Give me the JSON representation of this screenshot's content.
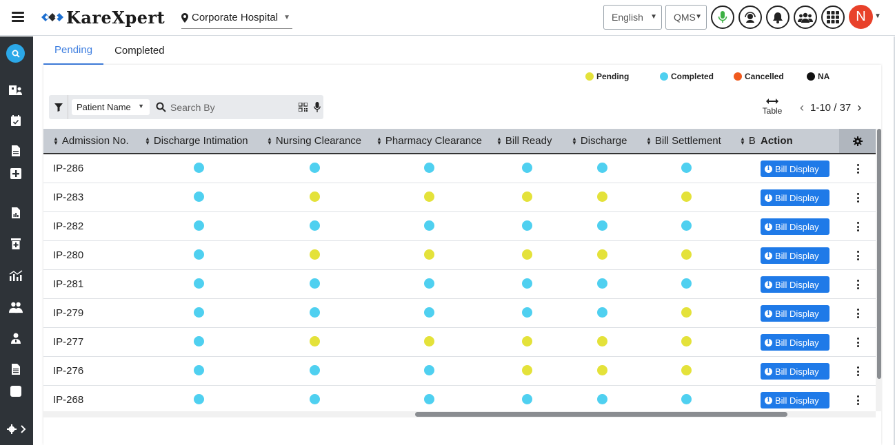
{
  "header": {
    "logo_text": "KareXpert",
    "location": "Corporate Hospital",
    "language": "English",
    "qms": "QMS",
    "avatar_initial": "N"
  },
  "tabs": [
    {
      "label": "Pending",
      "active": true
    },
    {
      "label": "Completed",
      "active": false
    }
  ],
  "legend": [
    {
      "label": "Pending",
      "color": "#e4e23a"
    },
    {
      "label": "Completed",
      "color": "#4fd0f0"
    },
    {
      "label": "Cancelled",
      "color": "#f05a1e"
    },
    {
      "label": "NA",
      "color": "#111111"
    }
  ],
  "filter": {
    "field": "Patient Name",
    "placeholder": "Search By"
  },
  "view_toggle": "Table",
  "pager": "1-10 / 37",
  "columns": [
    "Admission No.",
    "Discharge Intimation",
    "Nursing Clearance",
    "Pharmacy Clearance",
    "Bill Ready",
    "Discharge",
    "Bill Settlement",
    "B",
    "Action"
  ],
  "status_colors": {
    "P": "#e4e23a",
    "C": "#4fd0f0"
  },
  "rows": [
    {
      "adm": "IP-286",
      "status": [
        "C",
        "C",
        "C",
        "C",
        "C",
        "C"
      ],
      "action": "Bill Display"
    },
    {
      "adm": "IP-283",
      "status": [
        "C",
        "P",
        "P",
        "P",
        "P",
        "P"
      ],
      "action": "Bill Display"
    },
    {
      "adm": "IP-282",
      "status": [
        "C",
        "C",
        "C",
        "C",
        "C",
        "C"
      ],
      "action": "Bill Display"
    },
    {
      "adm": "IP-280",
      "status": [
        "C",
        "P",
        "P",
        "P",
        "P",
        "P"
      ],
      "action": "Bill Display"
    },
    {
      "adm": "IP-281",
      "status": [
        "C",
        "C",
        "C",
        "C",
        "C",
        "C"
      ],
      "action": "Bill Display"
    },
    {
      "adm": "IP-279",
      "status": [
        "C",
        "C",
        "C",
        "C",
        "C",
        "P"
      ],
      "action": "Bill Display"
    },
    {
      "adm": "IP-277",
      "status": [
        "C",
        "P",
        "P",
        "P",
        "P",
        "P"
      ],
      "action": "Bill Display"
    },
    {
      "adm": "IP-276",
      "status": [
        "C",
        "C",
        "C",
        "P",
        "P",
        "P"
      ],
      "action": "Bill Display"
    },
    {
      "adm": "IP-268",
      "status": [
        "C",
        "C",
        "C",
        "C",
        "C",
        "C"
      ],
      "action": "Bill Display"
    }
  ]
}
